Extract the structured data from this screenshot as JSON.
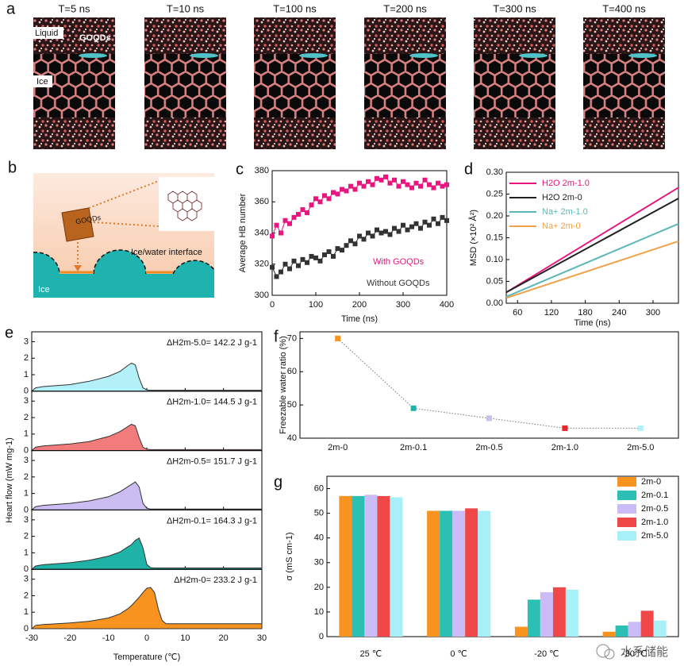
{
  "watermark": "水系储能",
  "panel_a": {
    "label": "a",
    "frames": [
      {
        "title": "T=5 ns"
      },
      {
        "title": "T=10 ns"
      },
      {
        "title": "T=100 ns"
      },
      {
        "title": "T=200 ns"
      },
      {
        "title": "T=300 ns"
      },
      {
        "title": "T=400 ns"
      }
    ],
    "liquid_label": "Liquid",
    "goqd_label": "GOQDs",
    "ice_label": "Ice"
  },
  "panel_b": {
    "label": "b",
    "goqd_label": "GOQDs",
    "interface_label": "Ice/water interface",
    "ice_label": "Ice"
  },
  "chart_data": [
    {
      "type": "scatter",
      "panel": "c",
      "xlabel": "Time (ns)",
      "ylabel": "Average HB number",
      "xlim": [
        0,
        400
      ],
      "xticks": [
        0,
        100,
        200,
        300,
        400
      ],
      "ylim": [
        300,
        380
      ],
      "yticks": [
        300,
        320,
        340,
        360,
        380
      ],
      "x": [
        0,
        10,
        20,
        30,
        40,
        50,
        60,
        70,
        80,
        90,
        100,
        110,
        120,
        130,
        140,
        150,
        160,
        170,
        180,
        190,
        200,
        210,
        220,
        230,
        240,
        250,
        260,
        270,
        280,
        290,
        300,
        310,
        320,
        330,
        340,
        350,
        360,
        370,
        380,
        390,
        400
      ],
      "series": [
        {
          "name": "With GOQDs",
          "color": "#e8177f",
          "values": [
            338,
            345,
            340,
            348,
            346,
            350,
            352,
            355,
            353,
            358,
            362,
            360,
            364,
            362,
            366,
            365,
            368,
            367,
            370,
            368,
            372,
            370,
            373,
            371,
            375,
            374,
            376,
            372,
            374,
            370,
            373,
            371,
            369,
            372,
            370,
            374,
            371,
            369,
            372,
            370,
            371
          ]
        },
        {
          "name": "Without GOQDs",
          "color": "#333333",
          "values": [
            318,
            312,
            315,
            320,
            317,
            322,
            319,
            323,
            321,
            325,
            324,
            322,
            326,
            328,
            325,
            330,
            329,
            332,
            335,
            333,
            338,
            336,
            340,
            338,
            342,
            340,
            341,
            339,
            343,
            341,
            345,
            342,
            344,
            346,
            343,
            347,
            345,
            349,
            346,
            350,
            348
          ]
        }
      ]
    },
    {
      "type": "line",
      "panel": "d",
      "xlabel": "Time (ns)",
      "ylabel": "MSD (×10² Å²)",
      "xlim": [
        40,
        345
      ],
      "xticks": [
        60,
        120,
        180,
        240,
        300
      ],
      "ylim": [
        0,
        0.3
      ],
      "yticks": [
        {
          "value": 0,
          "label": "0.00"
        },
        0.05,
        {
          "value": 0.1,
          "label": "0.10"
        },
        0.15,
        {
          "value": 0.2,
          "label": "0.20"
        },
        0.25,
        {
          "value": 0.3,
          "label": "0.30"
        }
      ],
      "x": [
        40,
        345
      ],
      "series": [
        {
          "name": "H2O 2m-1.0",
          "color": "#e8177f",
          "values": [
            0.025,
            0.265
          ]
        },
        {
          "name": "H2O 2m-0",
          "color": "#222222",
          "values": [
            0.025,
            0.24
          ]
        },
        {
          "name": "Na+ 2m-1.0",
          "color": "#5cb8b8",
          "values": [
            0.015,
            0.182
          ]
        },
        {
          "name": "Na+ 2m-0",
          "color": "#f0a24a",
          "values": [
            0.012,
            0.142
          ]
        }
      ]
    },
    {
      "type": "area",
      "panel": "e",
      "xlabel": "Temperature (℃)",
      "ylabel": "Heart flow (mW mg-1)",
      "xlim": [
        -30,
        30
      ],
      "xticks": [
        -30,
        -20,
        -10,
        0,
        10,
        20,
        30
      ],
      "ylim": [
        0,
        3.6
      ],
      "yticks": [
        0,
        1,
        2,
        3
      ],
      "x": [
        -30,
        -29,
        -27,
        -20,
        -15,
        -10,
        -7,
        -5,
        -4,
        -3,
        -2,
        -1,
        0,
        1,
        2,
        3,
        4,
        5,
        10,
        30
      ],
      "series": [
        {
          "annotation": "ΔH2m-5.0= 142.2 J g-1",
          "color": "#b3f0f7",
          "values": [
            0,
            0.2,
            0.28,
            0.4,
            0.6,
            0.9,
            1.2,
            1.55,
            1.7,
            1.6,
            0.8,
            0.2,
            0.08,
            0.06,
            0.06,
            0.06,
            0.06,
            0.06,
            0.06,
            0.06
          ]
        },
        {
          "annotation": "ΔH2m-1.0= 144.5 J g-1",
          "color": "#f27b7b",
          "values": [
            0,
            0.2,
            0.28,
            0.4,
            0.55,
            0.85,
            1.15,
            1.45,
            1.6,
            1.5,
            0.8,
            0.2,
            0.08,
            0.06,
            0.06,
            0.06,
            0.06,
            0.06,
            0.06,
            0.06
          ]
        },
        {
          "annotation": "ΔH2m-0.5= 151.7 J g-1",
          "color": "#cbbcf2",
          "values": [
            0,
            0.2,
            0.28,
            0.4,
            0.55,
            0.8,
            1.1,
            1.4,
            1.55,
            1.7,
            1.4,
            0.4,
            0.1,
            0.06,
            0.06,
            0.06,
            0.06,
            0.06,
            0.06,
            0.06
          ]
        },
        {
          "annotation": "ΔH2m-0.1= 164.3 J g-1",
          "color": "#1fb3a8",
          "values": [
            0,
            0.2,
            0.28,
            0.4,
            0.55,
            0.8,
            1.05,
            1.35,
            1.5,
            1.75,
            1.9,
            1.3,
            0.3,
            0.1,
            0.08,
            0.08,
            0.08,
            0.08,
            0.08,
            0.08
          ]
        },
        {
          "annotation": "ΔH2m-0= 233.2 J g-1",
          "color": "#f7931e",
          "values": [
            0,
            0.2,
            0.25,
            0.35,
            0.45,
            0.65,
            0.9,
            1.2,
            1.4,
            1.65,
            1.9,
            2.2,
            2.45,
            2.5,
            2.2,
            1.2,
            0.5,
            0.3,
            0.3,
            0.3
          ]
        }
      ]
    },
    {
      "type": "marker-line",
      "panel": "f",
      "ylabel": "Freezable water ratio (%)",
      "categories": [
        "2m-0",
        "2m-0.1",
        "2m-0.5",
        "2m-1.0",
        "2m-5.0"
      ],
      "values": [
        70,
        49,
        46,
        43,
        43
      ],
      "colors": [
        "#f7931e",
        "#1fb3a8",
        "#cbbcf2",
        "#e8262a",
        "#b3f0f7"
      ],
      "ylim": [
        40,
        72
      ],
      "yticks": [
        40,
        50,
        60,
        70
      ]
    },
    {
      "type": "bar",
      "panel": "g",
      "ylabel": "σ (mS cm-1)",
      "categories": [
        "25 ℃",
        "0 ℃",
        "-20 ℃",
        "-30 ℃"
      ],
      "ylim": [
        0,
        65
      ],
      "yticks": [
        0,
        10,
        20,
        30,
        40,
        50,
        60
      ],
      "series": [
        {
          "name": "2m-0",
          "color": "#f7931e",
          "values": [
            57,
            51,
            4,
            2
          ]
        },
        {
          "name": "2m-0.1",
          "color": "#2cbfb4",
          "values": [
            57,
            51,
            15,
            4.5
          ]
        },
        {
          "name": "2m-0.5",
          "color": "#cbbcf7",
          "values": [
            57.5,
            51,
            18,
            6
          ]
        },
        {
          "name": "2m-1.0",
          "color": "#f04848",
          "values": [
            57,
            52,
            20,
            10.5
          ]
        },
        {
          "name": "2m-5.0",
          "color": "#a8f0f7",
          "values": [
            56.5,
            51,
            19,
            6.5
          ]
        }
      ]
    }
  ]
}
